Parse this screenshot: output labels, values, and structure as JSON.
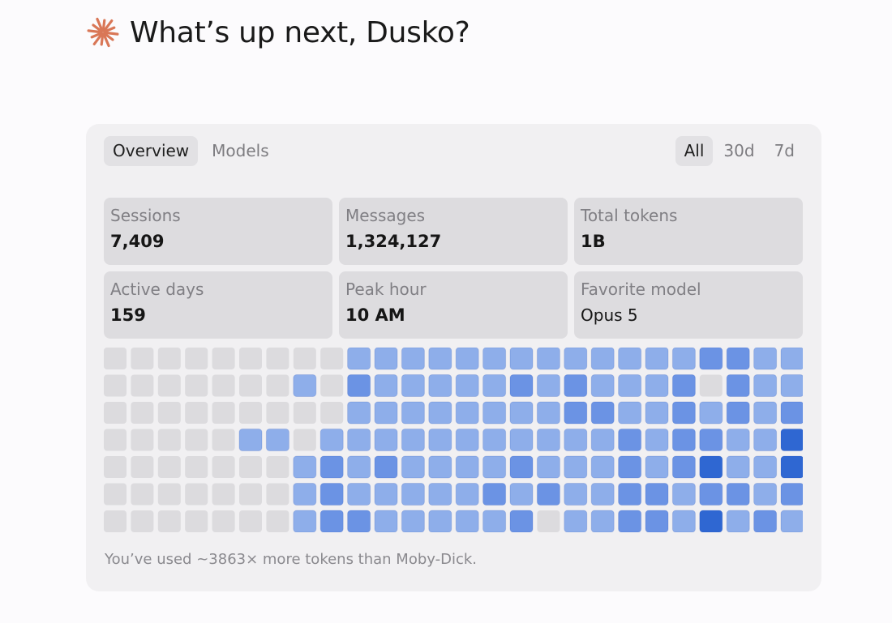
{
  "greeting": {
    "text": "What’s up next, Dusko?",
    "logo_icon": "sparkle-asterisk-icon",
    "logo_color": "#d97757"
  },
  "tabs": [
    {
      "label": "Overview",
      "active": true
    },
    {
      "label": "Models",
      "active": false
    }
  ],
  "ranges": [
    {
      "label": "All",
      "active": true
    },
    {
      "label": "30d",
      "active": false
    },
    {
      "label": "7d",
      "active": false
    }
  ],
  "stats": [
    {
      "label": "Sessions",
      "value": "7,409"
    },
    {
      "label": "Messages",
      "value": "1,324,127"
    },
    {
      "label": "Total tokens",
      "value": "1B"
    },
    {
      "label": "Active days",
      "value": "159"
    },
    {
      "label": "Peak hour",
      "value": "10 AM"
    },
    {
      "label": "Favorite model",
      "value": "Opus 5"
    }
  ],
  "heatmap": {
    "rows": 7,
    "columns": 26,
    "levels_legend": "0 = no activity, 1 = light, 2 = medium, 3 = high",
    "colors": [
      "#dcdbde",
      "#8eaeea",
      "#6b93e4",
      "#2f67d2"
    ],
    "levels": [
      [
        0,
        0,
        0,
        0,
        0,
        0,
        0,
        0,
        0,
        1,
        1,
        1,
        1,
        1,
        1,
        1,
        1,
        1,
        1,
        1,
        1,
        1,
        2,
        2,
        1,
        1
      ],
      [
        0,
        0,
        0,
        0,
        0,
        0,
        0,
        1,
        0,
        2,
        1,
        1,
        1,
        1,
        1,
        2,
        1,
        2,
        1,
        1,
        1,
        2,
        0,
        2,
        1,
        1
      ],
      [
        0,
        0,
        0,
        0,
        0,
        0,
        0,
        0,
        0,
        1,
        1,
        1,
        1,
        1,
        1,
        1,
        1,
        2,
        2,
        1,
        1,
        2,
        1,
        2,
        1,
        2
      ],
      [
        0,
        0,
        0,
        0,
        0,
        1,
        1,
        0,
        1,
        1,
        1,
        1,
        1,
        1,
        1,
        1,
        1,
        1,
        1,
        2,
        1,
        2,
        2,
        1,
        1,
        3
      ],
      [
        0,
        0,
        0,
        0,
        0,
        0,
        0,
        1,
        2,
        1,
        2,
        1,
        1,
        1,
        1,
        2,
        1,
        1,
        1,
        2,
        1,
        2,
        3,
        1,
        1,
        3
      ],
      [
        0,
        0,
        0,
        0,
        0,
        0,
        0,
        1,
        2,
        1,
        1,
        1,
        1,
        1,
        2,
        1,
        2,
        1,
        1,
        2,
        2,
        1,
        2,
        2,
        1,
        2
      ],
      [
        0,
        0,
        0,
        0,
        0,
        0,
        0,
        1,
        2,
        2,
        1,
        1,
        1,
        1,
        1,
        2,
        0,
        1,
        1,
        2,
        2,
        1,
        3,
        1,
        2,
        1
      ]
    ]
  },
  "footnote": "You’ve used ~3863× more tokens than Moby-Dick."
}
